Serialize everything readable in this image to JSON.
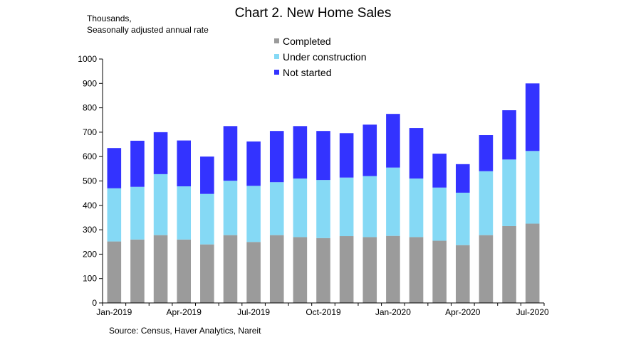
{
  "chart_data": {
    "type": "bar",
    "stacked": true,
    "title": "Chart 2. New Home Sales",
    "units_line1": "Thousands,",
    "units_line2": "Seasonally adjusted annual rate",
    "source": "Source: Census, Haver Analytics, Nareit",
    "categories": [
      "Jan-2019",
      "Feb-2019",
      "Mar-2019",
      "Apr-2019",
      "May-2019",
      "Jun-2019",
      "Jul-2019",
      "Aug-2019",
      "Sep-2019",
      "Oct-2019",
      "Nov-2019",
      "Dec-2019",
      "Jan-2020",
      "Feb-2020",
      "Mar-2020",
      "Apr-2020",
      "May-2020",
      "Jun-2020",
      "Jul-2020"
    ],
    "x_tick_labels": [
      {
        "index": 0,
        "label": "Jan-2019"
      },
      {
        "index": 3,
        "label": "Apr-2019"
      },
      {
        "index": 6,
        "label": "Jul-2019"
      },
      {
        "index": 9,
        "label": "Oct-2019"
      },
      {
        "index": 12,
        "label": "Jan-2020"
      },
      {
        "index": 15,
        "label": "Apr-2020"
      },
      {
        "index": 18,
        "label": "Jul-2020"
      }
    ],
    "ylim": [
      0,
      1000
    ],
    "yticks": [
      0,
      100,
      200,
      300,
      400,
      500,
      600,
      700,
      800,
      900,
      1000
    ],
    "legend_position": "top-center",
    "series": [
      {
        "name": "Completed",
        "color": "#9b9b9b",
        "values": [
          252,
          260,
          278,
          260,
          240,
          278,
          250,
          278,
          270,
          266,
          274,
          270,
          275,
          270,
          255,
          237,
          278,
          315,
          325
        ]
      },
      {
        "name": "Under construction",
        "color": "#85d9f5",
        "values": [
          218,
          216,
          250,
          218,
          207,
          223,
          230,
          217,
          240,
          238,
          240,
          250,
          280,
          240,
          218,
          215,
          262,
          273,
          298
        ]
      },
      {
        "name": "Not started",
        "color": "#3333ff",
        "values": [
          165,
          189,
          172,
          188,
          153,
          224,
          182,
          210,
          215,
          201,
          182,
          211,
          220,
          207,
          139,
          117,
          148,
          202,
          277
        ]
      }
    ]
  }
}
